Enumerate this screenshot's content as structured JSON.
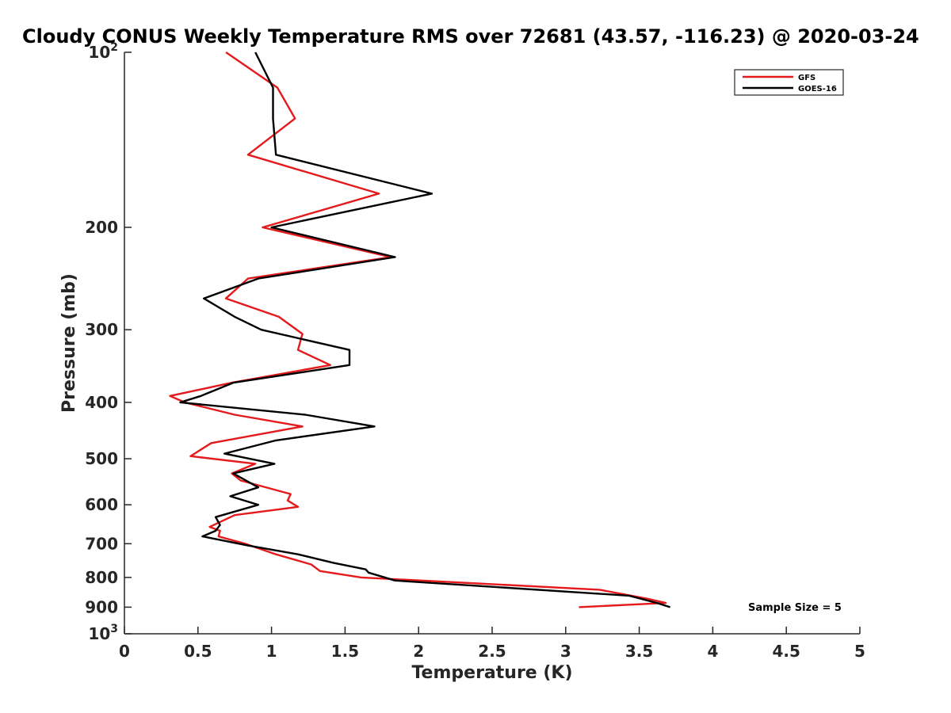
{
  "chart_data": {
    "type": "line",
    "title": "Cloudy CONUS Weekly Temperature RMS over 72681 (43.57, -116.23) @ 2020-03-24",
    "xlabel": "Temperature (K)",
    "ylabel": "Pressure (mb)",
    "xlim": [
      0,
      5
    ],
    "ylim": [
      100,
      1000
    ],
    "y_scale": "log",
    "y_reversed": true,
    "x_ticks": [
      "0",
      "0.5",
      "1",
      "1.5",
      "2",
      "2.5",
      "3",
      "3.5",
      "4",
      "4.5",
      "5"
    ],
    "y_ticks": [
      {
        "value": 100,
        "base": "10",
        "exp": "2"
      },
      {
        "value": 200,
        "label": "200"
      },
      {
        "value": 300,
        "label": "300"
      },
      {
        "value": 400,
        "label": "400"
      },
      {
        "value": 500,
        "label": "500"
      },
      {
        "value": 600,
        "label": "600"
      },
      {
        "value": 700,
        "label": "700"
      },
      {
        "value": 800,
        "label": "800"
      },
      {
        "value": 900,
        "label": "900"
      },
      {
        "value": 1000,
        "base": "10",
        "exp": "3"
      }
    ],
    "grid": false,
    "legend": {
      "placement": "top-right"
    },
    "annotation": "Sample Size = 5",
    "series": [
      {
        "name": "GFS",
        "color": "#e41a1c",
        "points": [
          [
            0.69,
            100
          ],
          [
            1.04,
            115
          ],
          [
            1.16,
            130
          ],
          [
            0.84,
            150
          ],
          [
            1.73,
            175
          ],
          [
            0.94,
            200
          ],
          [
            1.81,
            225
          ],
          [
            0.84,
            245
          ],
          [
            0.69,
            265
          ],
          [
            1.05,
            285
          ],
          [
            1.21,
            305
          ],
          [
            1.18,
            325
          ],
          [
            1.4,
            345
          ],
          [
            0.73,
            370
          ],
          [
            0.31,
            390
          ],
          [
            0.41,
            400
          ],
          [
            0.75,
            420
          ],
          [
            1.21,
            440
          ],
          [
            0.59,
            470
          ],
          [
            0.45,
            495
          ],
          [
            0.89,
            510
          ],
          [
            0.73,
            530
          ],
          [
            0.79,
            545
          ],
          [
            1.13,
            575
          ],
          [
            1.11,
            590
          ],
          [
            1.18,
            605
          ],
          [
            0.75,
            625
          ],
          [
            0.58,
            655
          ],
          [
            0.65,
            665
          ],
          [
            0.64,
            680
          ],
          [
            0.82,
            700
          ],
          [
            1.03,
            730
          ],
          [
            1.27,
            760
          ],
          [
            1.33,
            780
          ],
          [
            1.61,
            800
          ],
          [
            3.23,
            840
          ],
          [
            3.55,
            870
          ],
          [
            3.68,
            885
          ],
          [
            3.09,
            900
          ]
        ]
      },
      {
        "name": "GOES-16",
        "color": "#000000",
        "points": [
          [
            0.89,
            100
          ],
          [
            1.01,
            115
          ],
          [
            1.01,
            130
          ],
          [
            1.03,
            150
          ],
          [
            2.09,
            175
          ],
          [
            1.0,
            200
          ],
          [
            1.84,
            225
          ],
          [
            0.91,
            245
          ],
          [
            0.54,
            265
          ],
          [
            0.75,
            285
          ],
          [
            0.93,
            300
          ],
          [
            1.53,
            325
          ],
          [
            1.53,
            345
          ],
          [
            0.74,
            370
          ],
          [
            0.52,
            390
          ],
          [
            0.38,
            400
          ],
          [
            1.23,
            420
          ],
          [
            1.7,
            440
          ],
          [
            1.03,
            465
          ],
          [
            0.68,
            490
          ],
          [
            1.02,
            510
          ],
          [
            0.74,
            530
          ],
          [
            0.91,
            560
          ],
          [
            0.72,
            580
          ],
          [
            0.91,
            600
          ],
          [
            0.62,
            630
          ],
          [
            0.65,
            650
          ],
          [
            0.62,
            665
          ],
          [
            0.53,
            680
          ],
          [
            0.84,
            705
          ],
          [
            1.18,
            730
          ],
          [
            1.42,
            755
          ],
          [
            1.64,
            775
          ],
          [
            1.66,
            785
          ],
          [
            1.84,
            810
          ],
          [
            3.43,
            860
          ],
          [
            3.62,
            885
          ],
          [
            3.71,
            900
          ]
        ]
      }
    ]
  }
}
